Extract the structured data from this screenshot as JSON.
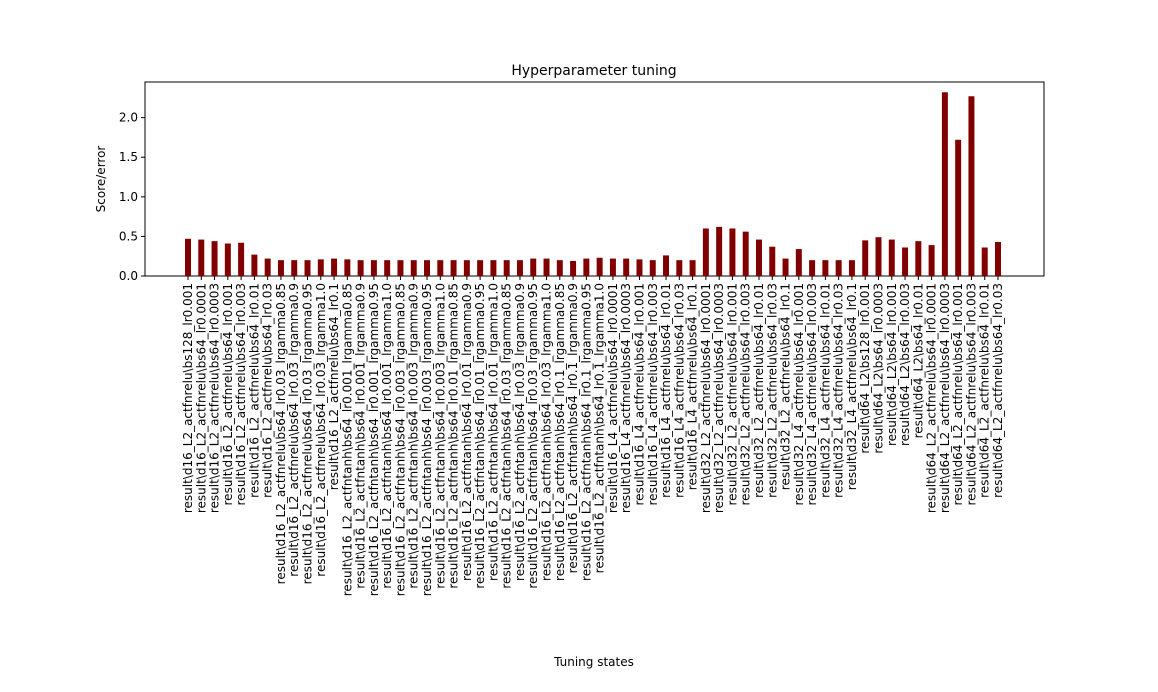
{
  "chart_data": {
    "type": "bar",
    "title": "Hyperparameter tuning",
    "xlabel": "Tuning states",
    "ylabel": "Score/error",
    "color": "#800000",
    "categories": [
      "result\\d16_L2_actfnrelu\\bs128_lr0.001",
      "result\\d16_L2_actfnrelu\\bs64_lr0.0001",
      "result\\d16_L2_actfnrelu\\bs64_lr0.0003",
      "result\\d16_L2_actfnrelu\\bs64_lr0.001",
      "result\\d16_L2_actfnrelu\\bs64_lr0.003",
      "result\\d16_L2_actfnrelu\\bs64_lr0.01",
      "result\\d16_L2_actfnrelu\\bs64_lr0.03",
      "result\\d16_L2_actfnrelu\\bs64_lr0.03_lrgamma0.85",
      "result\\d16_L2_actfnrelu\\bs64_lr0.03_lrgamma0.9",
      "result\\d16_L2_actfnrelu\\bs64_lr0.03_lrgamma0.95",
      "result\\d16_L2_actfnrelu\\bs64_lr0.03_lrgamma1.0",
      "result\\d16_L2_actfnrelu\\bs64_lr0.1",
      "result\\d16_L2_actfntanh\\bs64_lr0.001_lrgamma0.85",
      "result\\d16_L2_actfntanh\\bs64_lr0.001_lrgamma0.9",
      "result\\d16_L2_actfntanh\\bs64_lr0.001_lrgamma0.95",
      "result\\d16_L2_actfntanh\\bs64_lr0.001_lrgamma1.0",
      "result\\d16_L2_actfntanh\\bs64_lr0.003_lrgamma0.85",
      "result\\d16_L2_actfntanh\\bs64_lr0.003_lrgamma0.9",
      "result\\d16_L2_actfntanh\\bs64_lr0.003_lrgamma0.95",
      "result\\d16_L2_actfntanh\\bs64_lr0.003_lrgamma1.0",
      "result\\d16_L2_actfntanh\\bs64_lr0.01_lrgamma0.85",
      "result\\d16_L2_actfntanh\\bs64_lr0.01_lrgamma0.9",
      "result\\d16_L2_actfntanh\\bs64_lr0.01_lrgamma0.95",
      "result\\d16_L2_actfntanh\\bs64_lr0.01_lrgamma1.0",
      "result\\d16_L2_actfntanh\\bs64_lr0.03_lrgamma0.85",
      "result\\d16_L2_actfntanh\\bs64_lr0.03_lrgamma0.9",
      "result\\d16_L2_actfntanh\\bs64_lr0.03_lrgamma0.95",
      "result\\d16_L2_actfntanh\\bs64_lr0.03_lrgamma1.0",
      "result\\d16_L2_actfntanh\\bs64_lr0.1_lrgamma0.85",
      "result\\d16_L2_actfntanh\\bs64_lr0.1_lrgamma0.9",
      "result\\d16_L2_actfntanh\\bs64_lr0.1_lrgamma0.95",
      "result\\d16_L2_actfntanh\\bs64_lr0.1_lrgamma1.0",
      "result\\d16_L4_actfnrelu\\bs64_lr0.0001",
      "result\\d16_L4_actfnrelu\\bs64_lr0.0003",
      "result\\d16_L4_actfnrelu\\bs64_lr0.001",
      "result\\d16_L4_actfnrelu\\bs64_lr0.003",
      "result\\d16_L4_actfnrelu\\bs64_lr0.01",
      "result\\d16_L4_actfnrelu\\bs64_lr0.03",
      "result\\d16_L4_actfnrelu\\bs64_lr0.1",
      "result\\d32_L2_actfnrelu\\bs64_lr0.0001",
      "result\\d32_L2_actfnrelu\\bs64_lr0.0003",
      "result\\d32_L2_actfnrelu\\bs64_lr0.001",
      "result\\d32_L2_actfnrelu\\bs64_lr0.003",
      "result\\d32_L2_actfnrelu\\bs64_lr0.01",
      "result\\d32_L2_actfnrelu\\bs64_lr0.03",
      "result\\d32_L2_actfnrelu\\bs64_lr0.1",
      "result\\d32_L4_actfnrelu\\bs64_lr0.001",
      "result\\d32_L4_actfnrelu\\bs64_lr0.003",
      "result\\d32_L4_actfnrelu\\bs64_lr0.01",
      "result\\d32_L4_actfnrelu\\bs64_lr0.03",
      "result\\d32_L4_actfnrelu\\bs64_lr0.1",
      "result\\d64_L2\\bs128_lr0.001",
      "result\\d64_L2\\bs64_lr0.0003",
      "result\\d64_L2\\bs64_lr0.001",
      "result\\d64_L2\\bs64_lr0.003",
      "result\\d64_L2\\bs64_lr0.01",
      "result\\d64_L2_actfnrelu\\bs64_lr0.0001",
      "result\\d64_L2_actfnrelu\\bs64_lr0.0003",
      "result\\d64_L2_actfnrelu\\bs64_lr0.001",
      "result\\d64_L2_actfnrelu\\bs64_lr0.003",
      "result\\d64_L2_actfnrelu\\bs64_lr0.01",
      "result\\d64_L2_actfnrelu\\bs64_lr0.03"
    ],
    "values": [
      0.47,
      0.46,
      0.44,
      0.41,
      0.42,
      0.27,
      0.22,
      0.2,
      0.2,
      0.2,
      0.21,
      0.22,
      0.21,
      0.2,
      0.2,
      0.2,
      0.2,
      0.2,
      0.2,
      0.2,
      0.2,
      0.2,
      0.2,
      0.2,
      0.2,
      0.2,
      0.22,
      0.22,
      0.2,
      0.19,
      0.22,
      0.23,
      0.22,
      0.22,
      0.21,
      0.2,
      0.26,
      0.2,
      0.2,
      0.6,
      0.62,
      0.6,
      0.56,
      0.46,
      0.37,
      0.22,
      0.34,
      0.2,
      0.2,
      0.2,
      0.2,
      0.45,
      0.49,
      0.46,
      0.36,
      0.44,
      0.39,
      2.32,
      1.72,
      2.27,
      0.36,
      0.43
    ],
    "ylim": [
      0,
      2.45
    ],
    "yticks": [
      {
        "value": 0,
        "label": "0.0"
      },
      {
        "value": 0.5,
        "label": "0.5"
      },
      {
        "value": 1,
        "label": "1.0"
      },
      {
        "value": 1.5,
        "label": "1.5"
      },
      {
        "value": 2,
        "label": "2.0"
      }
    ],
    "grid": false
  }
}
